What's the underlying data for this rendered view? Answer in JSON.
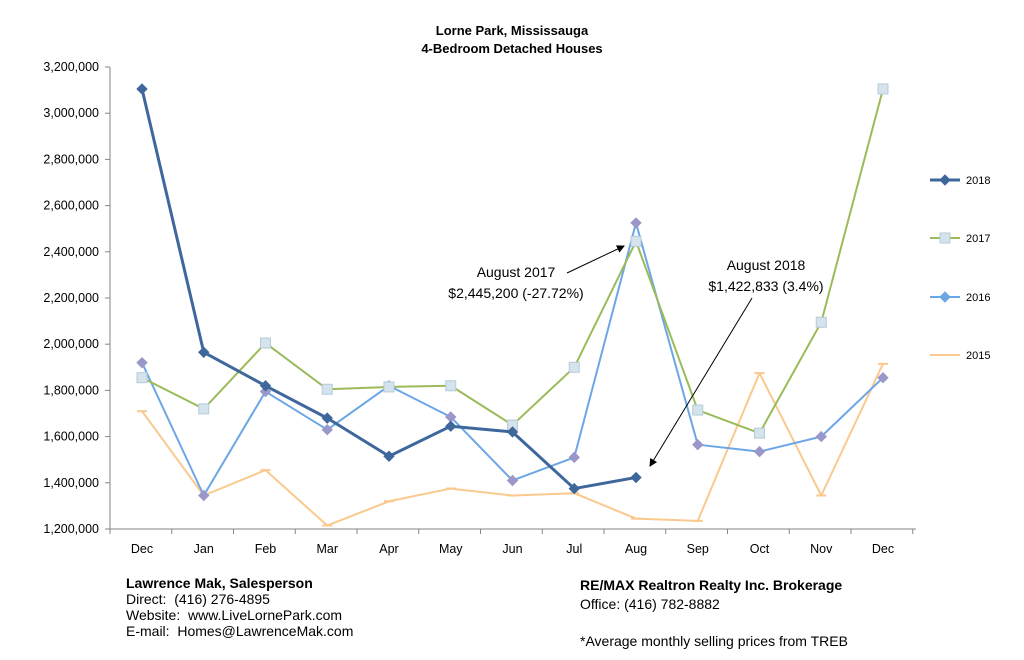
{
  "chart_data": {
    "type": "line",
    "title": "Lorne Park, Mississauga",
    "subtitle": "4-Bedroom Detached Houses",
    "categories": [
      "Dec",
      "Jan",
      "Feb",
      "Mar",
      "Apr",
      "May",
      "Jun",
      "Jul",
      "Aug",
      "Sep",
      "Oct",
      "Nov",
      "Dec"
    ],
    "ylim": [
      1200000,
      3200000
    ],
    "yticks": [
      "1,200,000",
      "1,400,000",
      "1,600,000",
      "1,800,000",
      "2,000,000",
      "2,200,000",
      "2,400,000",
      "2,600,000",
      "2,800,000",
      "3,000,000",
      "3,200,000"
    ],
    "ytick_values": [
      1200000,
      1400000,
      1600000,
      1800000,
      2000000,
      2200000,
      2400000,
      2600000,
      2800000,
      3000000,
      3200000
    ],
    "grid": false,
    "legend_position": "right",
    "series": [
      {
        "name": "2018",
        "color": "#3e679c",
        "marker": "diamond",
        "values": [
          3105000,
          1965000,
          1820000,
          1680000,
          1515000,
          1645000,
          1620000,
          1375000,
          1422833,
          null,
          null,
          null,
          null
        ]
      },
      {
        "name": "2017",
        "color": "#9bbb59",
        "marker": "square",
        "values": [
          1855000,
          1720000,
          2005000,
          1805000,
          1815000,
          1820000,
          1650000,
          1900000,
          2445200,
          1715000,
          1615000,
          2095000,
          3105000
        ]
      },
      {
        "name": "2016",
        "color": "#6ca6e6",
        "marker": "diamond",
        "values": [
          1920000,
          1345000,
          1795000,
          1630000,
          1820000,
          1685000,
          1410000,
          1510000,
          2525000,
          1565000,
          1535000,
          1600000,
          1855000
        ]
      },
      {
        "name": "2015",
        "color": "#f9c98e",
        "marker": "dash",
        "values": [
          1710000,
          1345000,
          1455000,
          1215000,
          1320000,
          1375000,
          1345000,
          1355000,
          1245000,
          1235000,
          1875000,
          1345000,
          1915000
        ]
      }
    ],
    "annotations": [
      {
        "lines": [
          "August 2017",
          "$2,445,200 (-27.72%)"
        ]
      },
      {
        "lines": [
          "August 2018",
          "$1,422,833 (3.4%)"
        ]
      }
    ]
  },
  "footer": {
    "left": {
      "name": "Lawrence Mak, Salesperson",
      "direct": "Direct:  (416) 276-4895",
      "website": "Website:  www.LiveLornePark.com",
      "email": "E-mail:  Homes@LawrenceMak.com"
    },
    "right": {
      "brokerage": "RE/MAX Realtron Realty Inc. Brokerage",
      "office": "Office: (416) 782-8882",
      "note": "*Average monthly selling prices from TREB"
    }
  }
}
